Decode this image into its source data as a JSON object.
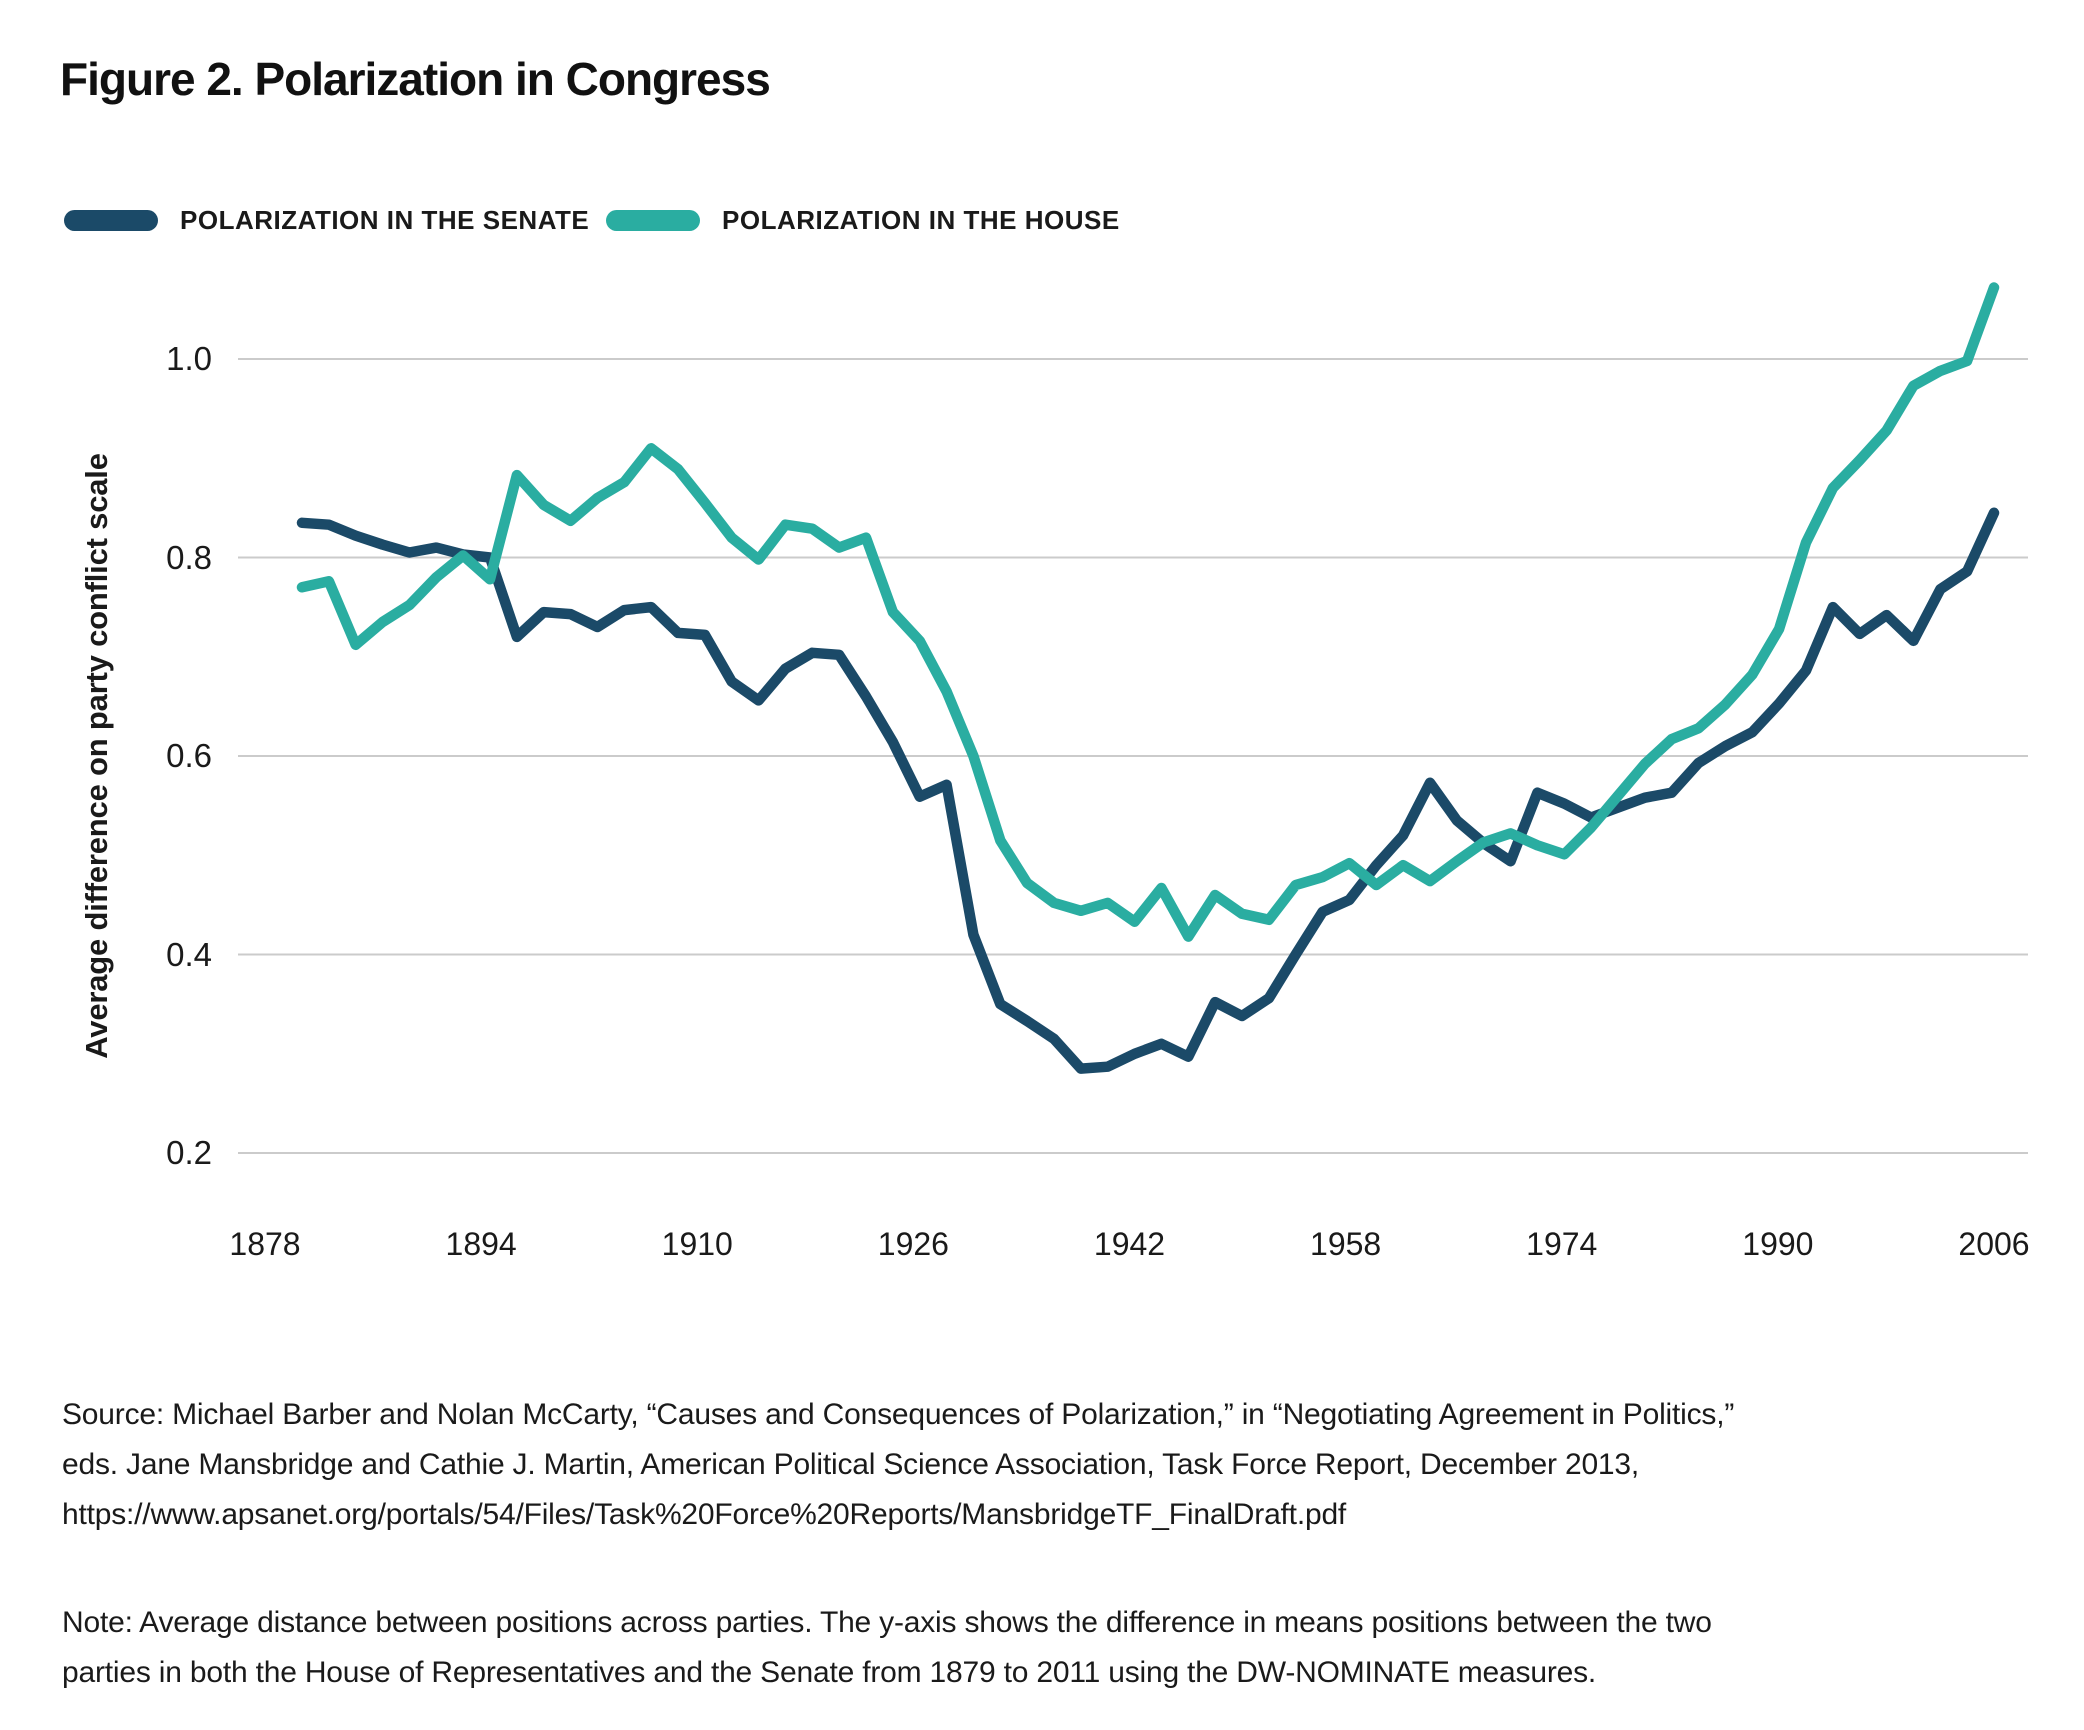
{
  "figure": {
    "title": "Figure 2. Polarization in Congress",
    "source": "Source: Michael Barber and Nolan McCarty, “Causes and Consequences of Polarization,” in “Negotiating Agreement in Politics,” eds. Jane Mansbridge and Cathie J. Martin, American Political Science Association, Task Force Report, December 2013, https://www.apsanet.org/portals/54/Files/Task%20Force%20Reports/MansbridgeTF_FinalDraft.pdf",
    "note": "Note: Average distance between positions across parties. The y-axis shows the difference in means positions between the two parties in both the House of Representatives and the Senate from 1879 to 2011 using the DW-NOMINATE measures."
  },
  "legend": {
    "senate": {
      "label": "POLARIZATION IN THE SENATE",
      "color": "#1b4a68"
    },
    "house": {
      "label": "POLARIZATION IN THE HOUSE",
      "color": "#2aada1"
    }
  },
  "colors": {
    "senate": "#1b4a68",
    "house": "#2aada1",
    "gridline": "#cbcbcb",
    "text": "#1a1a1a"
  },
  "chart_data": {
    "type": "line",
    "title": "Figure 2. Polarization in Congress",
    "xlabel": "",
    "ylabel": "Average difference on party conflict scale",
    "x_ticks": [
      "1878",
      "1894",
      "1910",
      "1926",
      "1942",
      "1958",
      "1974",
      "1990",
      "2006"
    ],
    "y_ticks": [
      "0.2",
      "0.4",
      "0.6",
      "0.8",
      "1.0"
    ],
    "ylim": [
      0.13,
      1.12
    ],
    "grid": "horizontal",
    "legend_position": "top-left",
    "x": [
      1879,
      1881,
      1883,
      1885,
      1887,
      1889,
      1891,
      1893,
      1895,
      1897,
      1899,
      1901,
      1903,
      1905,
      1907,
      1909,
      1911,
      1913,
      1915,
      1917,
      1919,
      1921,
      1923,
      1925,
      1927,
      1929,
      1931,
      1933,
      1935,
      1937,
      1939,
      1941,
      1943,
      1945,
      1947,
      1949,
      1951,
      1953,
      1955,
      1957,
      1959,
      1961,
      1963,
      1965,
      1967,
      1969,
      1971,
      1973,
      1975,
      1977,
      1979,
      1981,
      1983,
      1985,
      1987,
      1989,
      1991,
      1993,
      1995,
      1997,
      1999,
      2001,
      2003,
      2005
    ],
    "series": [
      {
        "name": "Polarization in the Senate",
        "color": "#1b4a68",
        "values": [
          0.835,
          0.833,
          0.822,
          0.813,
          0.805,
          0.81,
          0.803,
          0.8,
          0.72,
          0.745,
          0.743,
          0.73,
          0.747,
          0.75,
          0.724,
          0.722,
          0.675,
          0.656,
          0.688,
          0.704,
          0.702,
          0.66,
          0.614,
          0.559,
          0.571,
          0.42,
          0.35,
          0.333,
          0.315,
          0.285,
          0.287,
          0.3,
          0.31,
          0.297,
          0.352,
          0.338,
          0.356,
          0.4,
          0.443,
          0.455,
          0.49,
          0.52,
          0.573,
          0.535,
          0.512,
          0.494,
          0.563,
          0.552,
          0.538,
          0.548,
          0.558,
          0.563,
          0.593,
          0.61,
          0.624,
          0.653,
          0.686,
          0.75,
          0.723,
          0.742,
          0.716,
          0.768,
          0.786,
          0.845
        ]
      },
      {
        "name": "Polarization in the House",
        "color": "#2aada1",
        "values": [
          0.77,
          0.776,
          0.712,
          0.735,
          0.752,
          0.78,
          0.802,
          0.778,
          0.883,
          0.853,
          0.837,
          0.86,
          0.876,
          0.91,
          0.889,
          0.855,
          0.82,
          0.798,
          0.833,
          0.829,
          0.81,
          0.82,
          0.745,
          0.716,
          0.665,
          0.6,
          0.515,
          0.472,
          0.452,
          0.444,
          0.452,
          0.433,
          0.467,
          0.418,
          0.46,
          0.441,
          0.435,
          0.47,
          0.478,
          0.492,
          0.47,
          0.49,
          0.474,
          0.494,
          0.513,
          0.522,
          0.51,
          0.501,
          0.528,
          0.56,
          0.592,
          0.617,
          0.628,
          0.652,
          0.682,
          0.728,
          0.815,
          0.87,
          0.898,
          0.928,
          0.973,
          0.988,
          0.998,
          1.072
        ]
      }
    ]
  }
}
